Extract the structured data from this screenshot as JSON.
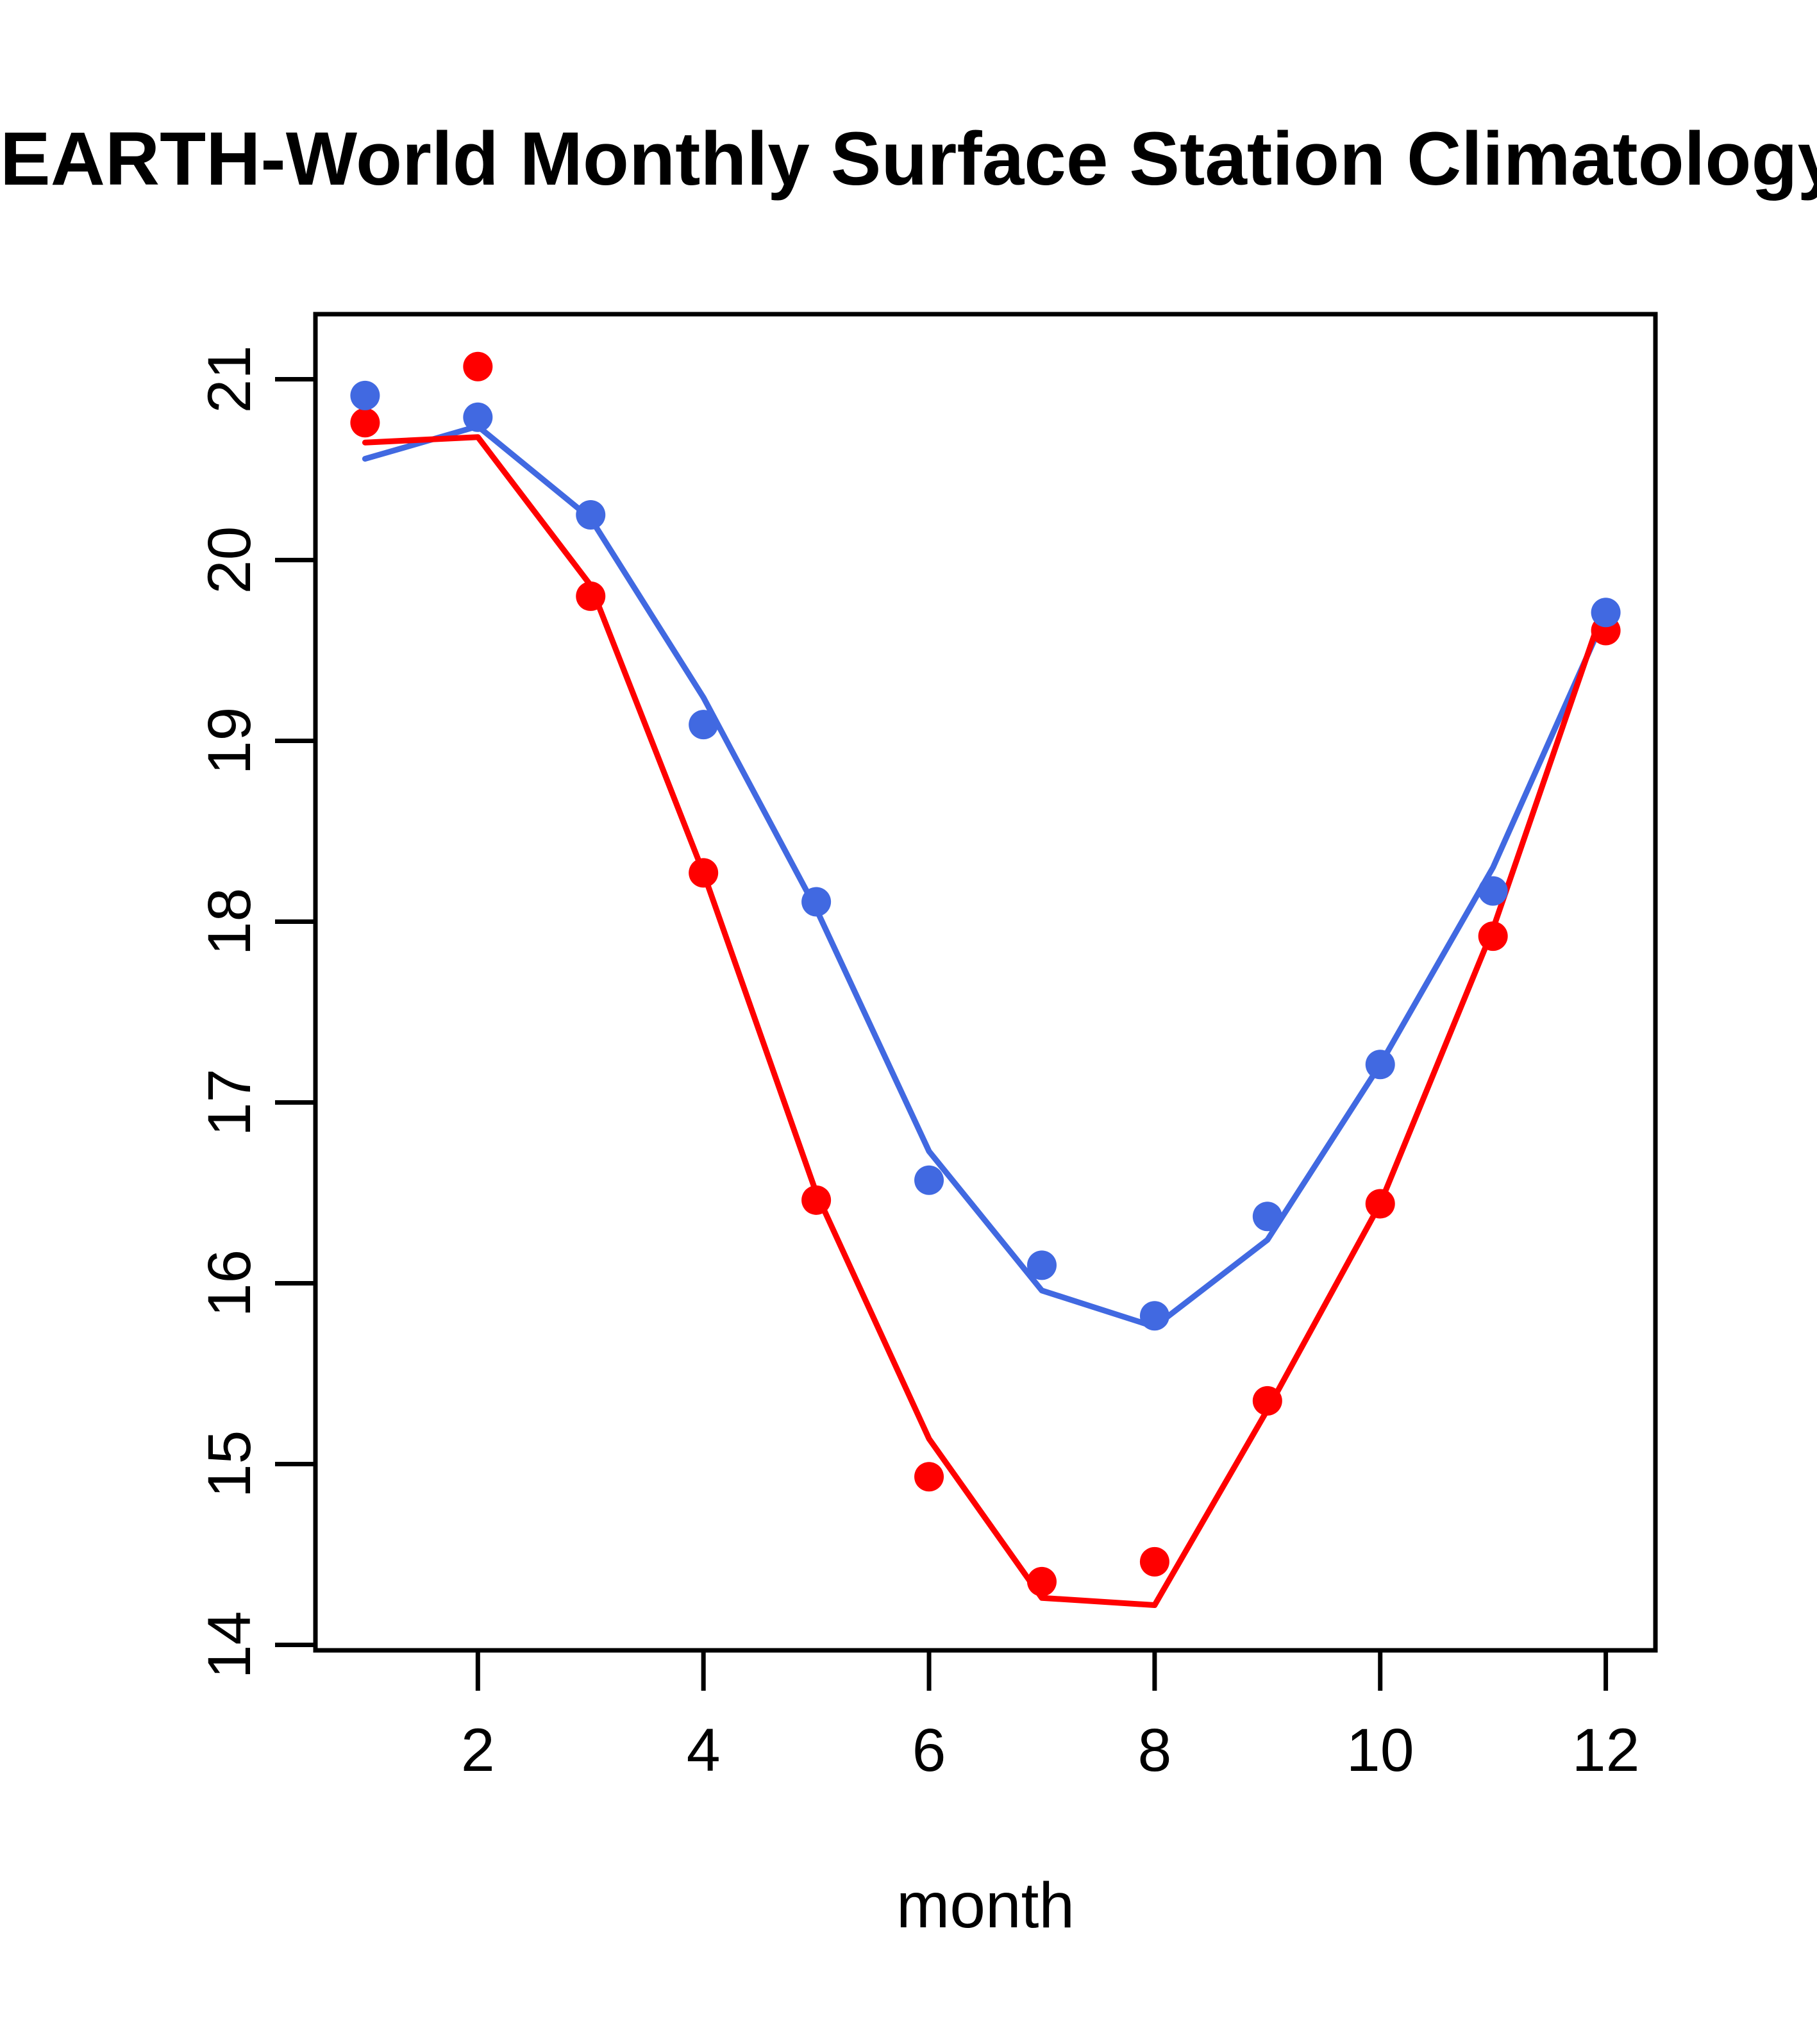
{
  "page": {
    "background_color": "#ffffff"
  },
  "chart_data": {
    "type": "line",
    "title": "EARTH-World Monthly Surface Station Climatology",
    "xlabel": "month",
    "ylabel": "",
    "grid": false,
    "legend": "none",
    "x": [
      1,
      2,
      3,
      4,
      5,
      6,
      7,
      8,
      9,
      10,
      11,
      12
    ],
    "xlim": [
      0.56,
      12.44
    ],
    "ylim": [
      13.97,
      21.36
    ],
    "x_ticks": [
      2,
      4,
      6,
      8,
      10,
      12
    ],
    "y_ticks": [
      14,
      15,
      16,
      17,
      18,
      19,
      20,
      21
    ],
    "colors": {
      "blue": "#4169E1",
      "red": "#FF0000",
      "axis": "#000000"
    },
    "series": [
      {
        "name": "blue-points",
        "kind": "scatter",
        "color": "#4169E1",
        "marker": "circle",
        "values": [
          20.91,
          20.79,
          20.25,
          19.09,
          18.11,
          16.57,
          16.1,
          15.82,
          16.37,
          17.21,
          18.17,
          19.71
        ]
      },
      {
        "name": "red-points",
        "kind": "scatter",
        "color": "#FF0000",
        "marker": "circle",
        "values": [
          20.76,
          21.07,
          19.8,
          18.27,
          16.46,
          14.93,
          14.35,
          14.46,
          15.35,
          16.44,
          17.92,
          19.61
        ]
      },
      {
        "name": "blue-fitted-line",
        "kind": "line",
        "color": "#4169E1",
        "values": [
          20.56,
          20.74,
          20.23,
          19.24,
          18.07,
          16.73,
          15.96,
          15.76,
          16.24,
          17.21,
          18.3,
          19.7
        ]
      },
      {
        "name": "red-fitted-line",
        "kind": "line",
        "color": "#FF0000",
        "values": [
          20.65,
          20.68,
          19.86,
          18.27,
          16.5,
          15.14,
          14.26,
          14.22,
          15.3,
          16.44,
          17.96,
          19.77
        ]
      }
    ]
  }
}
